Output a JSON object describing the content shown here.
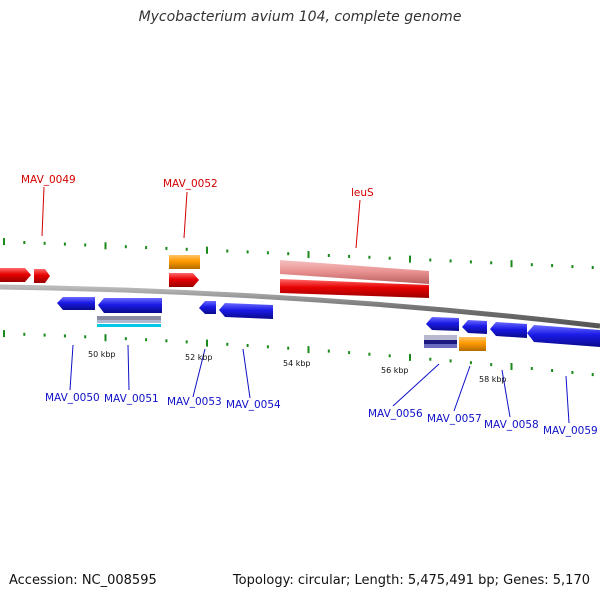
{
  "title": "Mycobacterium avium 104, complete genome",
  "footer": {
    "accession": "Accession: NC_008595",
    "topology": "Topology: circular; Length: 5,475,491 bp; Genes: 5,170"
  },
  "colors": {
    "forward_gene": "#e60000",
    "reverse_gene": "#1a1ae6",
    "rna": "#ff9900",
    "highlight": "#e89090",
    "backbone": "#777777",
    "tick": "#1a8a1a"
  },
  "ticks": [
    {
      "label": "50 kbp"
    },
    {
      "label": "52 kbp"
    },
    {
      "label": "54 kbp"
    },
    {
      "label": "56 kbp"
    },
    {
      "label": "58 kbp"
    }
  ],
  "labels_top": [
    {
      "name": "MAV_0049"
    },
    {
      "name": "MAV_0052"
    },
    {
      "name": "leuS"
    }
  ],
  "labels_bottom": [
    {
      "name": "MAV_0050"
    },
    {
      "name": "MAV_0051"
    },
    {
      "name": "MAV_0053"
    },
    {
      "name": "MAV_0054"
    },
    {
      "name": "MAV_0056"
    },
    {
      "name": "MAV_0057"
    },
    {
      "name": "MAV_0058"
    },
    {
      "name": "MAV_0059"
    }
  ]
}
